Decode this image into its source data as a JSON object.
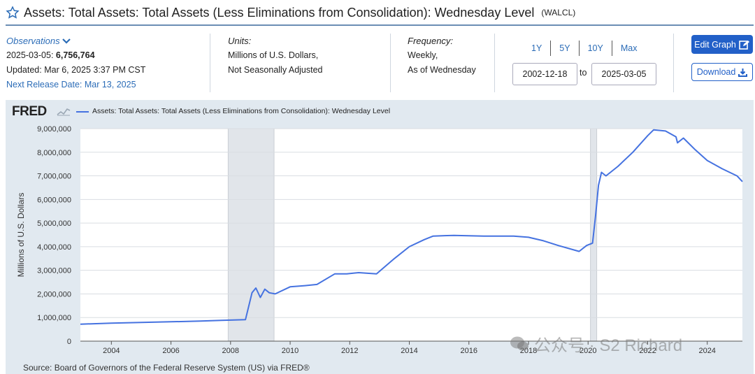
{
  "header": {
    "title": "Assets: Total Assets: Total Assets (Less Eliminations from Consolidation): Wednesday Level",
    "series_id": "(WALCL)"
  },
  "observations": {
    "label": "Observations",
    "latest_date": "2025-03-05:",
    "latest_value": "6,756,764",
    "updated": "Updated: Mar 6, 2025 3:37 PM CST",
    "next_release": "Next Release Date: Mar 13, 2025"
  },
  "units": {
    "label": "Units:",
    "line1": "Millions of U.S. Dollars,",
    "line2": "Not Seasonally Adjusted"
  },
  "frequency": {
    "label": "Frequency:",
    "line1": "Weekly,",
    "line2": "As of Wednesday"
  },
  "range": {
    "buttons": [
      "1Y",
      "5Y",
      "10Y",
      "Max"
    ],
    "start": "2002-12-18",
    "to_label": "to",
    "end": "2025-03-05"
  },
  "actions": {
    "edit_label": "Edit Graph",
    "download_label": "Download"
  },
  "branding": {
    "logo_text": "FRED",
    "source": "Source: Board of Governors of the Federal Reserve System (US) via FRED®",
    "watermark": "公众号 · S2 Richard"
  },
  "colors": {
    "line": "#4572e0",
    "recession": "#e1e5ea",
    "accent": "#2260c8",
    "panel": "#e1e9f0"
  },
  "chart_data": {
    "type": "line",
    "title": "",
    "xlabel": "",
    "ylabel": "Millions of U.S. Dollars",
    "xlim": [
      2002.96,
      2025.18
    ],
    "ylim": [
      0,
      9000000
    ],
    "y_ticks": [
      "0",
      "1,000,000",
      "2,000,000",
      "3,000,000",
      "4,000,000",
      "5,000,000",
      "6,000,000",
      "7,000,000",
      "8,000,000",
      "9,000,000"
    ],
    "x_ticks": [
      "2004",
      "2006",
      "2008",
      "2010",
      "2012",
      "2014",
      "2016",
      "2018",
      "2020",
      "2022",
      "2024"
    ],
    "recessions": [
      [
        2007.92,
        2009.46
      ],
      [
        2020.08,
        2020.29
      ]
    ],
    "series": [
      {
        "name": "Assets: Total Assets: Total Assets (Less Eliminations from Consolidation): Wednesday Level",
        "x": [
          2002.96,
          2004.0,
          2005.0,
          2006.0,
          2007.0,
          2007.7,
          2008.5,
          2008.72,
          2008.85,
          2009.0,
          2009.15,
          2009.3,
          2009.5,
          2010.0,
          2010.5,
          2010.9,
          2011.5,
          2011.9,
          2012.3,
          2012.9,
          2013.5,
          2014.0,
          2014.5,
          2014.8,
          2015.5,
          2016.5,
          2017.5,
          2018.0,
          2018.5,
          2019.0,
          2019.7,
          2019.95,
          2020.15,
          2020.25,
          2020.35,
          2020.45,
          2020.6,
          2021.0,
          2021.5,
          2022.0,
          2022.2,
          2022.6,
          2022.95,
          2023.0,
          2023.2,
          2023.6,
          2024.0,
          2024.5,
          2025.0,
          2025.18
        ],
        "values": [
          720000,
          760000,
          790000,
          820000,
          850000,
          880000,
          910000,
          2050000,
          2250000,
          1850000,
          2200000,
          2050000,
          2000000,
          2300000,
          2350000,
          2400000,
          2850000,
          2850000,
          2900000,
          2850000,
          3500000,
          4000000,
          4300000,
          4450000,
          4480000,
          4450000,
          4450000,
          4400000,
          4250000,
          4050000,
          3800000,
          4050000,
          4150000,
          5300000,
          6600000,
          7150000,
          7000000,
          7400000,
          8000000,
          8700000,
          8950000,
          8900000,
          8650000,
          8400000,
          8600000,
          8100000,
          7650000,
          7300000,
          7000000,
          6756764
        ]
      }
    ]
  }
}
